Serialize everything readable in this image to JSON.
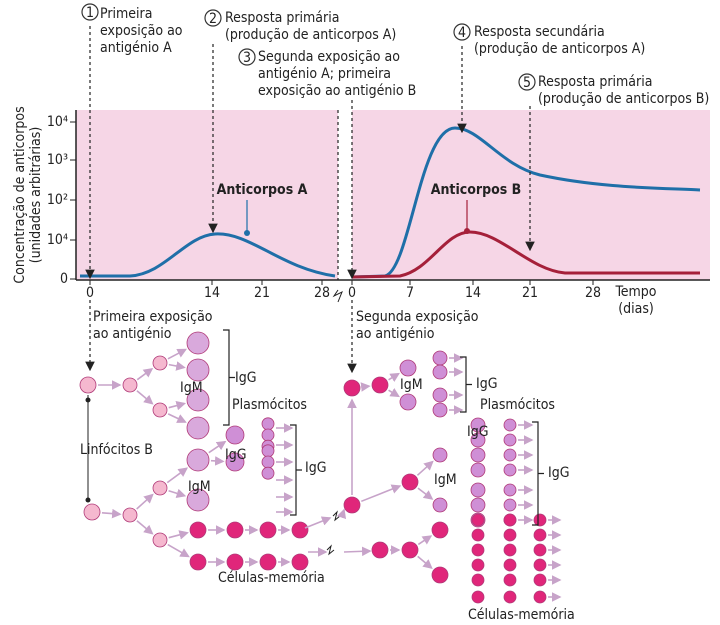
{
  "annotations": [
    {
      "number": "1",
      "lines": [
        "Primeira",
        "exposição ao",
        "antigénio A"
      ]
    },
    {
      "number": "2",
      "lines": [
        "Resposta primária",
        "(produção de anticorpos A)"
      ]
    },
    {
      "number": "3",
      "lines": [
        "Segunda exposição ao",
        "antigénio A; primeira",
        "exposição ao antigénio B"
      ]
    },
    {
      "number": "4",
      "lines": [
        "Resposta secundária",
        "(produção de anticorpos A)"
      ]
    },
    {
      "number": "5",
      "lines": [
        "Resposta primária",
        "(produção de anticorpos B)"
      ]
    }
  ],
  "chart": {
    "y_axis_title": [
      "Concentração de anticorpos",
      "(unidades arbitrárias)"
    ],
    "y_tick_labels": [
      "10⁴",
      "10³",
      "10²",
      "10⁴",
      "0"
    ],
    "x_tick_labels": [
      "0",
      "14",
      "21",
      "28",
      "0",
      "7",
      "14",
      "21",
      "28"
    ],
    "x_axis_title": [
      "Tempo",
      "(dias)"
    ],
    "series_labels": [
      "Anticorpos A",
      "Anticorpos B"
    ]
  },
  "diagram": {
    "exposures": [
      [
        "Primeira exposição",
        "ao antigénio"
      ],
      [
        "Segunda exposição",
        "ao antigénio"
      ]
    ],
    "labels": [
      "IgM",
      "IgG",
      "Plasmócitos",
      "Linfócitos B",
      "IgG",
      "IgG",
      "IgM",
      "Células-memória",
      "IgM",
      "IgG",
      "Plasmócitos",
      "IgG",
      "IgM",
      "IgG",
      "Células-memória"
    ]
  }
}
